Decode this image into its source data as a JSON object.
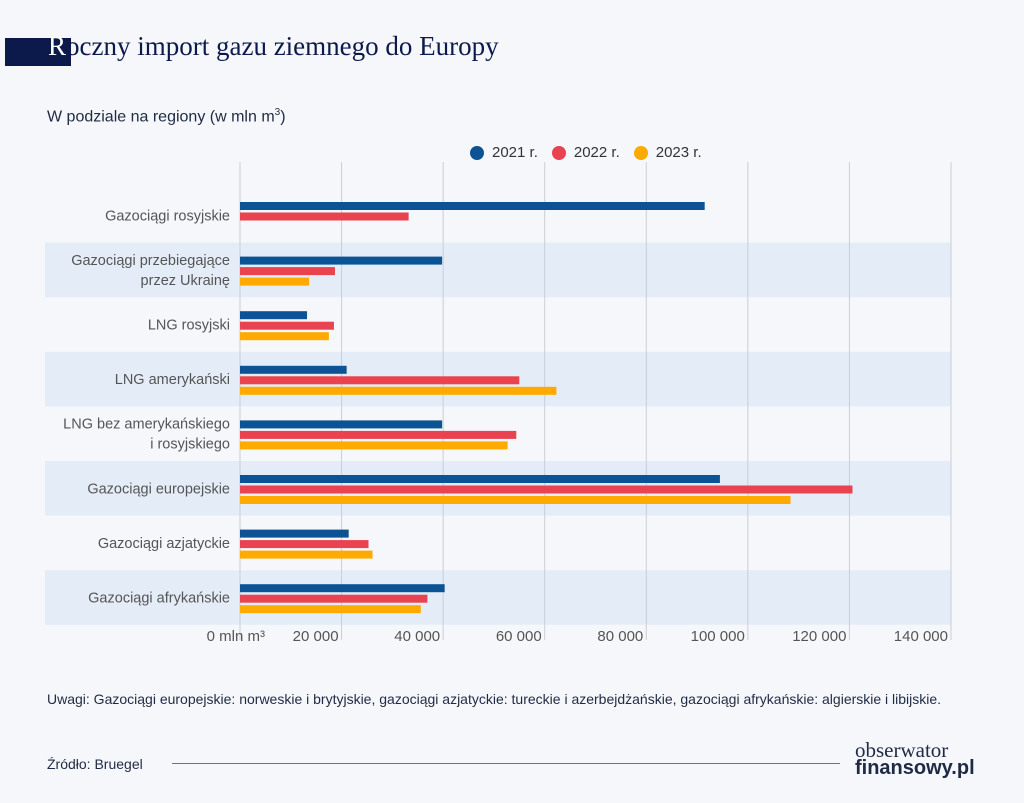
{
  "header": {
    "title_first": "R",
    "title_rest": "oczny import gazu ziemnego do Europy",
    "subtitle": "W podziale na regiony (w mln m",
    "subtitle_sup": "3",
    "subtitle_end": ")"
  },
  "chart_data": {
    "type": "bar",
    "orientation": "horizontal",
    "title": "Roczny import gazu ziemnego do Europy",
    "subtitle": "W podziale na regiony (w mln m3)",
    "categories": [
      [
        "Gazociągi rosyjskie"
      ],
      [
        "Gazociągi przebiegające",
        "przez Ukrainę"
      ],
      [
        "LNG rosyjski"
      ],
      [
        "LNG amerykański"
      ],
      [
        "LNG bez amerykańskiego",
        "i rosyjskiego"
      ],
      [
        "Gazociągi europejskie"
      ],
      [
        "Gazociągi azjatyckie"
      ],
      [
        "Gazociągi afrykańskie"
      ]
    ],
    "series": [
      {
        "name": "2021 r.",
        "color": "#0b5394",
        "values": [
          91500,
          39800,
          13200,
          21000,
          39800,
          94500,
          21400,
          40300
        ]
      },
      {
        "name": "2022 r.",
        "color": "#e8434f",
        "values": [
          33200,
          18700,
          18500,
          55000,
          54400,
          120600,
          25300,
          36900
        ]
      },
      {
        "name": "2023 r.",
        "color": "#ffaa00",
        "values": [
          null,
          13600,
          17500,
          62300,
          52700,
          108400,
          26100,
          35600
        ]
      }
    ],
    "xlim": [
      0,
      140000
    ],
    "xticks": [
      0,
      20000,
      40000,
      60000,
      80000,
      100000,
      120000,
      140000
    ],
    "xtick_labels": [
      "0 mln m³",
      "20 000",
      "40 000",
      "60 000",
      "80 000",
      "100 000",
      "120 000",
      "140 000"
    ],
    "grid": "vertical",
    "legend": "top-center",
    "row_shading": "#e4edf7"
  },
  "footer": {
    "note": "Uwagi: Gazociągi europejskie: norweskie i brytyjskie, gazociągi azjatyckie: tureckie i azerbejdżańskie, gazociągi afrykańskie: algierskie i libijskie.",
    "source": "Źródło: Bruegel",
    "logo_line1": "obserwator",
    "logo_line2": "finansowy.pl"
  }
}
